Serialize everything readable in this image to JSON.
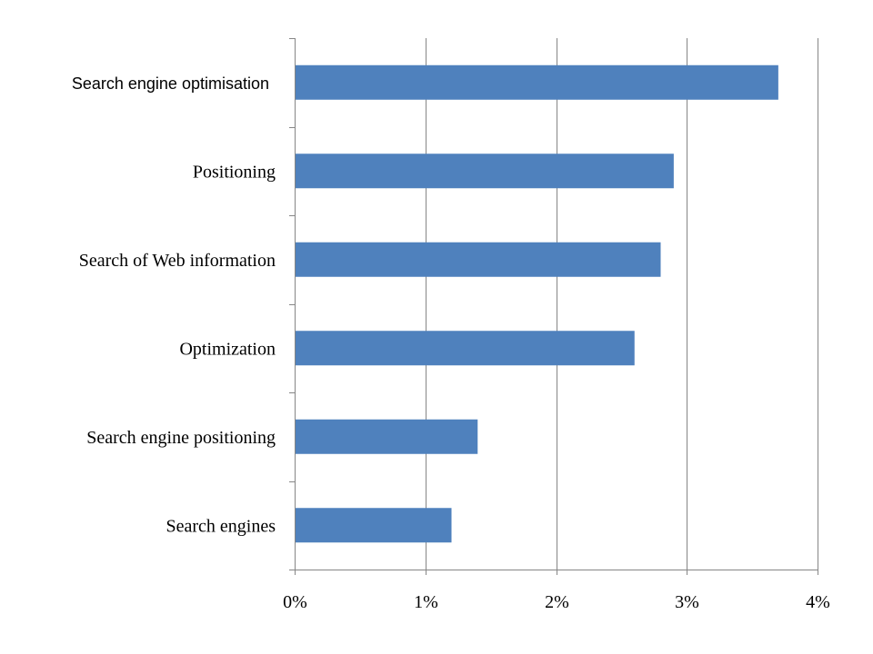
{
  "chart_data": {
    "type": "bar",
    "orientation": "horizontal",
    "categories": [
      "Search engine optimisation",
      "Positioning",
      "Search of Web information",
      "Optimization",
      "Search engine positioning",
      "Search engines"
    ],
    "values": [
      3.7,
      2.9,
      2.8,
      2.6,
      1.4,
      1.2
    ],
    "xlim": [
      0,
      4
    ],
    "xticks": [
      0,
      1,
      2,
      3,
      4
    ],
    "xtick_labels": [
      "0%",
      "1%",
      "2%",
      "3%",
      "4%"
    ],
    "grid": "vertical",
    "bar_color": "#4F81BD",
    "title": "",
    "xlabel": "",
    "ylabel": ""
  }
}
